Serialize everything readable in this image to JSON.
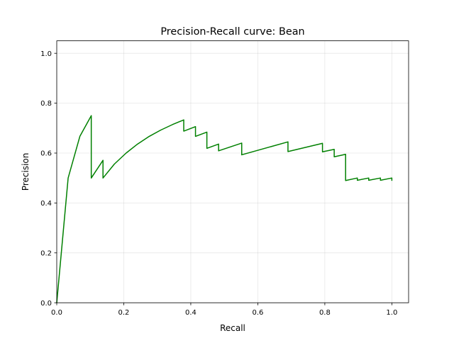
{
  "chart_data": {
    "type": "line",
    "title": "Precision-Recall curve: Bean",
    "xlabel": "Recall",
    "ylabel": "Precision",
    "xlim": [
      0,
      1.05
    ],
    "ylim": [
      0,
      1.05
    ],
    "xticks": [
      0.0,
      0.2,
      0.4,
      0.6,
      0.8,
      1.0
    ],
    "xtick_labels": [
      "0.0",
      "0.2",
      "0.4",
      "0.6",
      "0.8",
      "1.0"
    ],
    "yticks": [
      0.0,
      0.2,
      0.4,
      0.6,
      0.8,
      1.0
    ],
    "ytick_labels": [
      "0.0",
      "0.2",
      "0.4",
      "0.6",
      "0.8",
      "1.0"
    ],
    "grid": true,
    "legend": "none",
    "series": [
      {
        "color": "#008000",
        "x": [
          0.0,
          0.034,
          0.069,
          0.103,
          0.103,
          0.138,
          0.138,
          0.172,
          0.207,
          0.241,
          0.276,
          0.31,
          0.345,
          0.379,
          0.379,
          0.414,
          0.414,
          0.448,
          0.448,
          0.483,
          0.483,
          0.552,
          0.552,
          0.69,
          0.69,
          0.793,
          0.793,
          0.828,
          0.828,
          0.862,
          0.862,
          0.897,
          0.897,
          0.931,
          0.931,
          0.966,
          0.966,
          1.0,
          1.0
        ],
        "y": [
          0.0,
          0.5,
          0.667,
          0.75,
          0.5,
          0.571,
          0.5,
          0.556,
          0.6,
          0.636,
          0.667,
          0.692,
          0.714,
          0.733,
          0.688,
          0.706,
          0.667,
          0.684,
          0.619,
          0.636,
          0.609,
          0.64,
          0.593,
          0.645,
          0.606,
          0.639,
          0.605,
          0.615,
          0.585,
          0.595,
          0.49,
          0.5,
          0.491,
          0.5,
          0.491,
          0.5,
          0.491,
          0.5,
          0.491
        ]
      }
    ]
  }
}
